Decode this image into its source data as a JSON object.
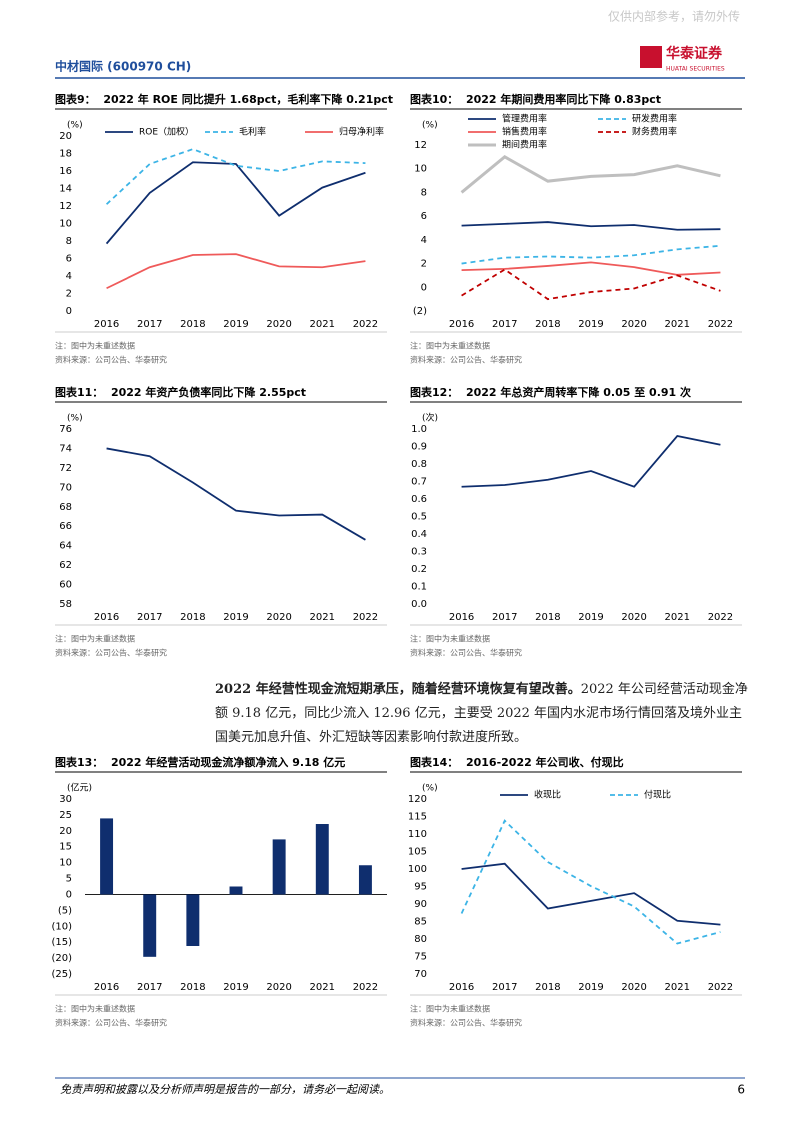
{
  "header": {
    "watermark": "仅供内部参考，请勿外传",
    "company": "中材国际 (600970 CH)",
    "logo": "华泰证券",
    "logo_en": "HUATAI SECURITIES"
  },
  "chart_data": [
    {
      "type": "line",
      "title": "图表9：  2022 年 ROE 同比提升 1.68pct，毛利率下降 0.21pct",
      "unit": "(%)",
      "categories": [
        "2016",
        "2017",
        "2018",
        "2019",
        "2020",
        "2021",
        "2022"
      ],
      "ylim": [
        0,
        20
      ],
      "yticks": [
        0,
        2,
        4,
        6,
        8,
        10,
        12,
        14,
        16,
        18,
        20
      ],
      "series": [
        {
          "name": "ROE（加权）",
          "color": "#0f2e6e",
          "dashed": false,
          "values": [
            7.7,
            13.5,
            17.0,
            16.8,
            10.9,
            14.1,
            15.8
          ]
        },
        {
          "name": "毛利率",
          "color": "#3cb4e6",
          "dashed": true,
          "values": [
            12.2,
            16.8,
            18.5,
            16.6,
            16.0,
            17.1,
            16.9
          ]
        },
        {
          "name": "归母净利率",
          "color": "#ef5a5a",
          "dashed": false,
          "values": [
            2.6,
            5.0,
            6.4,
            6.5,
            5.1,
            5.0,
            5.7
          ]
        }
      ],
      "note": "注：图中为未重述数据",
      "source": "资料来源：公司公告、华泰研究"
    },
    {
      "type": "line",
      "title": "图表10：  2022 年期间费用率同比下降 0.83pct",
      "unit": "(%)",
      "categories": [
        "2016",
        "2017",
        "2018",
        "2019",
        "2020",
        "2021",
        "2022"
      ],
      "ylim": [
        -2,
        12
      ],
      "yticks": [
        {
          "value": -2,
          "label": "(2)"
        },
        0,
        2,
        4,
        6,
        8,
        10,
        12
      ],
      "series": [
        {
          "name": "管理费用率",
          "color": "#0f2e6e",
          "dashed": false,
          "values": [
            5.2,
            5.35,
            5.5,
            5.15,
            5.25,
            4.85,
            4.9
          ]
        },
        {
          "name": "研发费用率",
          "color": "#3cb4e6",
          "dashed": true,
          "values": [
            2.0,
            2.5,
            2.6,
            2.5,
            2.7,
            3.2,
            3.5
          ]
        },
        {
          "name": "销售费用率",
          "color": "#ef5a5a",
          "dashed": false,
          "values": [
            1.45,
            1.55,
            1.8,
            2.1,
            1.7,
            1.05,
            1.25
          ]
        },
        {
          "name": "财务费用率",
          "color": "#c00000",
          "dashed": true,
          "values": [
            -0.7,
            1.5,
            -1.0,
            -0.4,
            -0.1,
            1.0,
            -0.3
          ]
        },
        {
          "name": "期间费用率",
          "color": "#bfbfbf",
          "dashed": false,
          "values": [
            8.0,
            11.0,
            8.95,
            9.35,
            9.5,
            10.25,
            9.4
          ]
        }
      ],
      "note": "注：图中为未重述数据",
      "source": "资料来源：公司公告、华泰研究"
    },
    {
      "type": "line",
      "title": "图表11：  2022 年资产负债率同比下降 2.55pct",
      "unit": "(%)",
      "categories": [
        "2016",
        "2017",
        "2018",
        "2019",
        "2020",
        "2021",
        "2022"
      ],
      "ylim": [
        58,
        76
      ],
      "yticks": [
        58,
        60,
        62,
        64,
        66,
        68,
        70,
        72,
        74,
        76
      ],
      "series": [
        {
          "name": null,
          "color": "#0f2e6e",
          "dashed": false,
          "values": [
            74.0,
            73.2,
            70.5,
            67.6,
            67.1,
            67.2,
            64.6
          ]
        }
      ],
      "note": "注：图中为未重述数据",
      "source": "资料来源：公司公告、华泰研究"
    },
    {
      "type": "line",
      "title": "图表12：  2022 年总资产周转率下降 0.05 至 0.91 次",
      "unit": "(次)",
      "categories": [
        "2016",
        "2017",
        "2018",
        "2019",
        "2020",
        "2021",
        "2022"
      ],
      "ylim": [
        0,
        1
      ],
      "yticks": [
        {
          "value": 0,
          "label": "0.0"
        },
        0.1,
        0.2,
        0.3,
        0.4,
        0.5,
        0.6,
        0.7,
        0.8,
        0.9,
        {
          "value": 1,
          "label": "1.0"
        }
      ],
      "series": [
        {
          "name": null,
          "color": "#0f2e6e",
          "dashed": false,
          "values": [
            0.67,
            0.68,
            0.71,
            0.76,
            0.67,
            0.96,
            0.91
          ]
        }
      ],
      "note": "注：图中为未重述数据",
      "source": "资料来源：公司公告、华泰研究"
    },
    {
      "type": "bar",
      "title": "图表13：  2022 年经营活动现金流净额净流入 9.18 亿元",
      "unit": "(亿元)",
      "categories": [
        "2016",
        "2017",
        "2018",
        "2019",
        "2020",
        "2021",
        "2022"
      ],
      "ylim": [
        -25,
        30
      ],
      "yticks": [
        {
          "value": -25,
          "label": "(25)"
        },
        {
          "value": -20,
          "label": "(20)"
        },
        {
          "value": -15,
          "label": "(15)"
        },
        {
          "value": -10,
          "label": "(10)"
        },
        {
          "value": -5,
          "label": "(5)"
        },
        0,
        5,
        10,
        15,
        20,
        25,
        30
      ],
      "series": [
        {
          "name": null,
          "color": "#0f2e6e",
          "dashed": false,
          "values": [
            23.9,
            -19.6,
            -16.2,
            2.5,
            17.3,
            22.14,
            9.18
          ]
        }
      ],
      "note": "注：图中为未重述数据",
      "source": "资料来源：公司公告、华泰研究"
    },
    {
      "type": "line",
      "title": "图表14：  2016-2022 年公司收、付现比",
      "unit": "(%)",
      "categories": [
        "2016",
        "2017",
        "2018",
        "2019",
        "2020",
        "2021",
        "2022"
      ],
      "ylim": [
        70,
        120
      ],
      "yticks": [
        70,
        75,
        80,
        85,
        90,
        95,
        100,
        105,
        110,
        115,
        120
      ],
      "series": [
        {
          "name": "收现比",
          "color": "#0f2e6e",
          "dashed": false,
          "values": [
            100.0,
            101.5,
            88.7,
            90.9,
            93.1,
            85.2,
            84.1
          ]
        },
        {
          "name": "付现比",
          "color": "#3cb4e6",
          "dashed": true,
          "values": [
            87.3,
            113.8,
            102.0,
            95.1,
            89.3,
            78.7,
            82.0
          ]
        }
      ],
      "note": "注：图中为未重述数据",
      "source": "资料来源：公司公告、华泰研究"
    }
  ],
  "paragraph": {
    "lead": "2022 年经营性现金流短期承压，随着经营环境恢复有望改善。",
    "body": "2022 年公司经营活动现金净额 9.18 亿元，同比少流入 12.96 亿元，主要受 2022 年国内水泥市场行情回落及境外业主国美元加息升值、外汇短缺等因素影响付款进度所致。"
  },
  "footer": {
    "disclaimer": "免责声明和披露以及分析师声明是报告的一部分，请务必一起阅读。",
    "page": "6"
  }
}
